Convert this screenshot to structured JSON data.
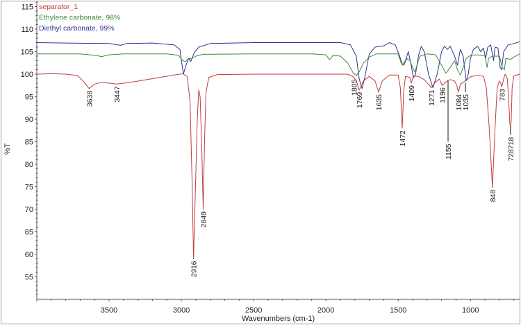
{
  "chart_data": {
    "type": "line",
    "title": "",
    "xlabel": "Wavenumbers (cm-1)",
    "ylabel": "%T",
    "xlim": [
      4000,
      660
    ],
    "x_reversed": true,
    "ylim": [
      50,
      116
    ],
    "x_ticks": [
      3500,
      3000,
      2500,
      2000,
      1500,
      1000
    ],
    "y_ticks": [
      55,
      60,
      65,
      70,
      75,
      80,
      85,
      90,
      95,
      100,
      105,
      110,
      115
    ],
    "grid": false,
    "legend_position": "top-left",
    "series": [
      {
        "name": "separator_1",
        "color": "#c23a3c",
        "points": [
          [
            4000,
            100
          ],
          [
            3900,
            100.1
          ],
          [
            3800,
            100
          ],
          [
            3720,
            99.7
          ],
          [
            3680,
            98.5
          ],
          [
            3638,
            96.8
          ],
          [
            3600,
            97.8
          ],
          [
            3550,
            98.2
          ],
          [
            3447,
            97.8
          ],
          [
            3350,
            98.2
          ],
          [
            3200,
            99
          ],
          [
            3050,
            99.8
          ],
          [
            2990,
            100.1
          ],
          [
            2960,
            99.5
          ],
          [
            2940,
            94
          ],
          [
            2925,
            75
          ],
          [
            2916,
            59
          ],
          [
            2905,
            72
          ],
          [
            2890,
            90
          ],
          [
            2880,
            96.5
          ],
          [
            2870,
            95
          ],
          [
            2860,
            85
          ],
          [
            2849,
            70
          ],
          [
            2840,
            85
          ],
          [
            2830,
            96
          ],
          [
            2810,
            99.3
          ],
          [
            2750,
            99.9
          ],
          [
            2500,
            100
          ],
          [
            2000,
            100
          ],
          [
            1850,
            100
          ],
          [
            1810,
            99.4
          ],
          [
            1790,
            98.5
          ],
          [
            1769,
            96.5
          ],
          [
            1740,
            98.5
          ],
          [
            1700,
            99.5
          ],
          [
            1660,
            98.5
          ],
          [
            1635,
            96
          ],
          [
            1610,
            98.5
          ],
          [
            1560,
            99.8
          ],
          [
            1500,
            99.8
          ],
          [
            1485,
            97
          ],
          [
            1472,
            88
          ],
          [
            1462,
            96
          ],
          [
            1450,
            99.5
          ],
          [
            1420,
            99.3
          ],
          [
            1409,
            98
          ],
          [
            1395,
            99.6
          ],
          [
            1360,
            99.5
          ],
          [
            1320,
            98.8
          ],
          [
            1271,
            97
          ],
          [
            1240,
            98.3
          ],
          [
            1215,
            98.9
          ],
          [
            1196,
            97.5
          ],
          [
            1170,
            98.3
          ],
          [
            1140,
            98.8
          ],
          [
            1110,
            98.5
          ],
          [
            1095,
            97.5
          ],
          [
            1084,
            96
          ],
          [
            1070,
            97.8
          ],
          [
            1040,
            98.4
          ],
          [
            1000,
            99.4
          ],
          [
            950,
            99.8
          ],
          [
            910,
            99.5
          ],
          [
            890,
            97
          ],
          [
            870,
            88
          ],
          [
            848,
            74.8
          ],
          [
            830,
            88
          ],
          [
            815,
            97
          ],
          [
            800,
            98.5
          ],
          [
            790,
            98
          ],
          [
            783,
            97.2
          ],
          [
            770,
            99
          ],
          [
            760,
            100
          ],
          [
            745,
            99
          ],
          [
            735,
            94
          ],
          [
            728,
            89
          ],
          [
            723,
            88.5
          ],
          [
            718,
            89.5
          ],
          [
            712,
            97
          ],
          [
            700,
            99.6
          ],
          [
            660,
            100
          ]
        ]
      },
      {
        "name": "Ethylene carbonate, 98%",
        "color": "#3a8a3a",
        "points": [
          [
            4000,
            104.5
          ],
          [
            3700,
            104.5
          ],
          [
            3600,
            104.2
          ],
          [
            3550,
            103.9
          ],
          [
            3500,
            104.3
          ],
          [
            3400,
            104.5
          ],
          [
            3100,
            104.5
          ],
          [
            3020,
            104.2
          ],
          [
            2990,
            103
          ],
          [
            2970,
            102.8
          ],
          [
            2950,
            103.5
          ],
          [
            2930,
            103.4
          ],
          [
            2900,
            104
          ],
          [
            2850,
            104.4
          ],
          [
            2500,
            104.5
          ],
          [
            2100,
            104.5
          ],
          [
            2000,
            104.3
          ],
          [
            1975,
            103.2
          ],
          [
            1950,
            104.2
          ],
          [
            1900,
            104
          ],
          [
            1850,
            102.5
          ],
          [
            1810,
            100.2
          ],
          [
            1790,
            99.7
          ],
          [
            1770,
            100.5
          ],
          [
            1740,
            102.5
          ],
          [
            1700,
            103.8
          ],
          [
            1650,
            104.5
          ],
          [
            1500,
            104.5
          ],
          [
            1480,
            102.5
          ],
          [
            1460,
            102
          ],
          [
            1440,
            103.5
          ],
          [
            1420,
            103
          ],
          [
            1400,
            101.5
          ],
          [
            1385,
            100.5
          ],
          [
            1370,
            102
          ],
          [
            1350,
            104
          ],
          [
            1300,
            104.5
          ],
          [
            1240,
            104.3
          ],
          [
            1200,
            102
          ],
          [
            1170,
            100.2
          ],
          [
            1140,
            101.5
          ],
          [
            1110,
            103
          ],
          [
            1090,
            101
          ],
          [
            1070,
            99.8
          ],
          [
            1050,
            101.5
          ],
          [
            1030,
            103.5
          ],
          [
            1000,
            104.2
          ],
          [
            950,
            104.3
          ],
          [
            900,
            104
          ],
          [
            885,
            101.5
          ],
          [
            875,
            103.5
          ],
          [
            850,
            104
          ],
          [
            800,
            104
          ],
          [
            780,
            101.5
          ],
          [
            765,
            101
          ],
          [
            755,
            103.5
          ],
          [
            720,
            103.3
          ],
          [
            700,
            103.8
          ],
          [
            660,
            104.5
          ]
        ]
      },
      {
        "name": "Diethyl carbonate, 99%",
        "color": "#2e3192",
        "points": [
          [
            4000,
            107
          ],
          [
            3800,
            106.9
          ],
          [
            3500,
            106.8
          ],
          [
            3420,
            106.4
          ],
          [
            3380,
            106.8
          ],
          [
            3200,
            106.9
          ],
          [
            3050,
            106.5
          ],
          [
            3010,
            105.5
          ],
          [
            2995,
            102
          ],
          [
            2985,
            100.1
          ],
          [
            2970,
            101.8
          ],
          [
            2950,
            103.5
          ],
          [
            2935,
            102.8
          ],
          [
            2910,
            104.8
          ],
          [
            2880,
            106
          ],
          [
            2800,
            106.8
          ],
          [
            2500,
            107
          ],
          [
            2200,
            107
          ],
          [
            1900,
            107
          ],
          [
            1830,
            106.5
          ],
          [
            1790,
            104
          ],
          [
            1770,
            99
          ],
          [
            1750,
            96.8
          ],
          [
            1730,
            99.5
          ],
          [
            1700,
            104.5
          ],
          [
            1660,
            106
          ],
          [
            1600,
            106.3
          ],
          [
            1560,
            107
          ],
          [
            1520,
            106.5
          ],
          [
            1490,
            104
          ],
          [
            1470,
            102
          ],
          [
            1450,
            103
          ],
          [
            1430,
            105
          ],
          [
            1410,
            102
          ],
          [
            1395,
            99.2
          ],
          [
            1380,
            100
          ],
          [
            1360,
            104
          ],
          [
            1340,
            106.2
          ],
          [
            1320,
            105
          ],
          [
            1290,
            100
          ],
          [
            1260,
            97
          ],
          [
            1230,
            100
          ],
          [
            1200,
            105
          ],
          [
            1180,
            106.2
          ],
          [
            1160,
            105.5
          ],
          [
            1140,
            106.2
          ],
          [
            1110,
            104
          ],
          [
            1090,
            102
          ],
          [
            1070,
            105.5
          ],
          [
            1050,
            104
          ],
          [
            1030,
            98.5
          ],
          [
            1015,
            100
          ],
          [
            1000,
            103.5
          ],
          [
            980,
            105.5
          ],
          [
            950,
            106.2
          ],
          [
            930,
            105
          ],
          [
            910,
            105.8
          ],
          [
            895,
            103.5
          ],
          [
            880,
            106
          ],
          [
            860,
            106.5
          ],
          [
            840,
            103
          ],
          [
            830,
            106
          ],
          [
            810,
            105.8
          ],
          [
            795,
            101.5
          ],
          [
            785,
            101
          ],
          [
            770,
            105
          ],
          [
            740,
            106.5
          ],
          [
            700,
            106.8
          ],
          [
            660,
            107.2
          ]
        ]
      }
    ],
    "peak_labels": [
      {
        "label": "3638",
        "x": 3638,
        "y": 96.8
      },
      {
        "label": "3447",
        "x": 3447,
        "y": 97.8
      },
      {
        "label": "2916",
        "x": 2916,
        "y": 59
      },
      {
        "label": "2849",
        "x": 2849,
        "y": 70
      },
      {
        "label": "1805",
        "x": 1805,
        "y": 99.3
      },
      {
        "label": "1769",
        "x": 1769,
        "y": 96.5
      },
      {
        "label": "1635",
        "x": 1635,
        "y": 96
      },
      {
        "label": "1472",
        "x": 1472,
        "y": 88
      },
      {
        "label": "1409",
        "x": 1409,
        "y": 98
      },
      {
        "label": "1271",
        "x": 1271,
        "y": 97
      },
      {
        "label": "1196",
        "x": 1196,
        "y": 97.5
      },
      {
        "label": "1155",
        "x": 1155,
        "y": 98.5,
        "leader_to": 85
      },
      {
        "label": "1084",
        "x": 1084,
        "y": 96
      },
      {
        "label": "1035",
        "x": 1035,
        "y": 98,
        "leader_to": 96
      },
      {
        "label": "848",
        "x": 848,
        "y": 74.8
      },
      {
        "label": "783",
        "x": 783,
        "y": 97.2
      },
      {
        "label": "728718",
        "x": 723,
        "y": 88.5,
        "leader_to": 86.5
      }
    ]
  }
}
